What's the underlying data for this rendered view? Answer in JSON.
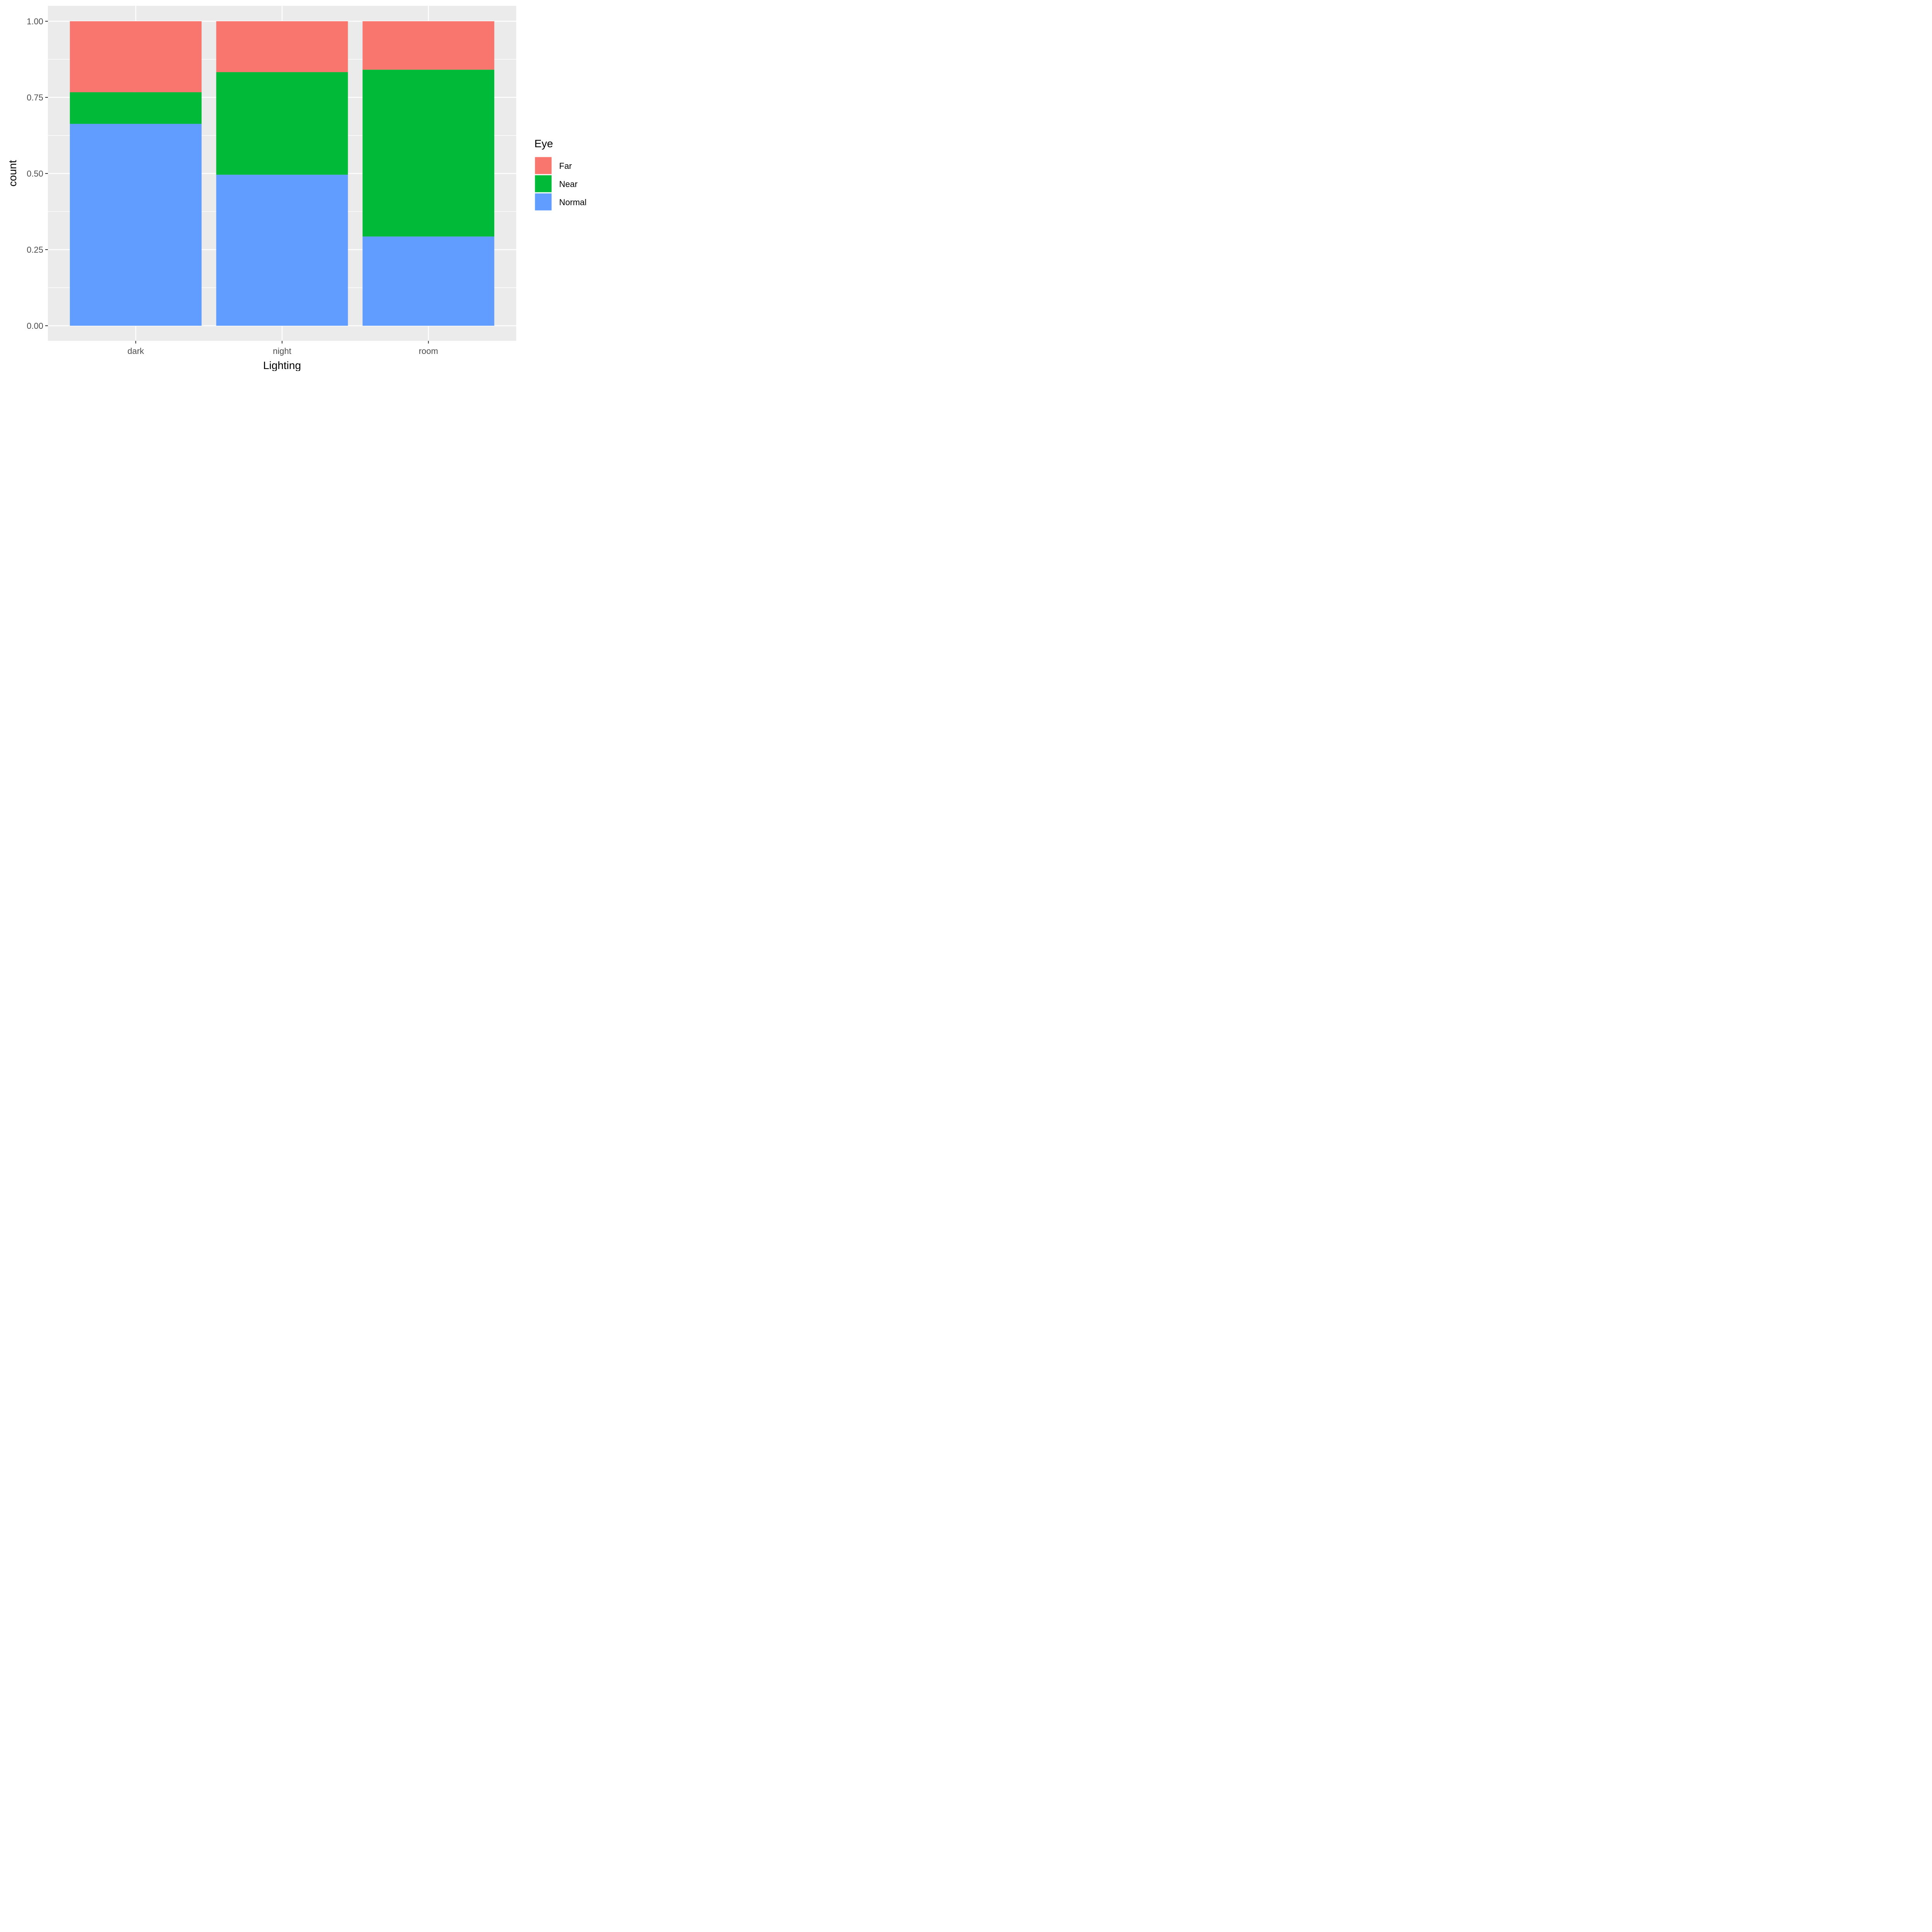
{
  "chart_data": {
    "type": "bar",
    "stacked": true,
    "normalized": true,
    "xlabel": "Lighting",
    "ylabel": "count",
    "ylim": [
      0,
      1
    ],
    "yticks": [
      "0.00",
      "0.25",
      "0.50",
      "0.75",
      "1.00"
    ],
    "ytick_values": [
      0,
      0.25,
      0.5,
      0.75,
      1.0
    ],
    "categories": [
      "dark",
      "night",
      "room"
    ],
    "series": [
      {
        "name": "Normal",
        "color": "#619CFF",
        "values": [
          0.663,
          0.496,
          0.293
        ]
      },
      {
        "name": "Near",
        "color": "#00BA38",
        "values": [
          0.104,
          0.337,
          0.548
        ]
      },
      {
        "name": "Far",
        "color": "#F8766D",
        "values": [
          0.233,
          0.167,
          0.159
        ]
      }
    ],
    "legend": {
      "title": "Eye",
      "position": "right",
      "order": [
        "Far",
        "Near",
        "Normal"
      ]
    },
    "grid": true,
    "panel_background": "#EBEBEB"
  }
}
